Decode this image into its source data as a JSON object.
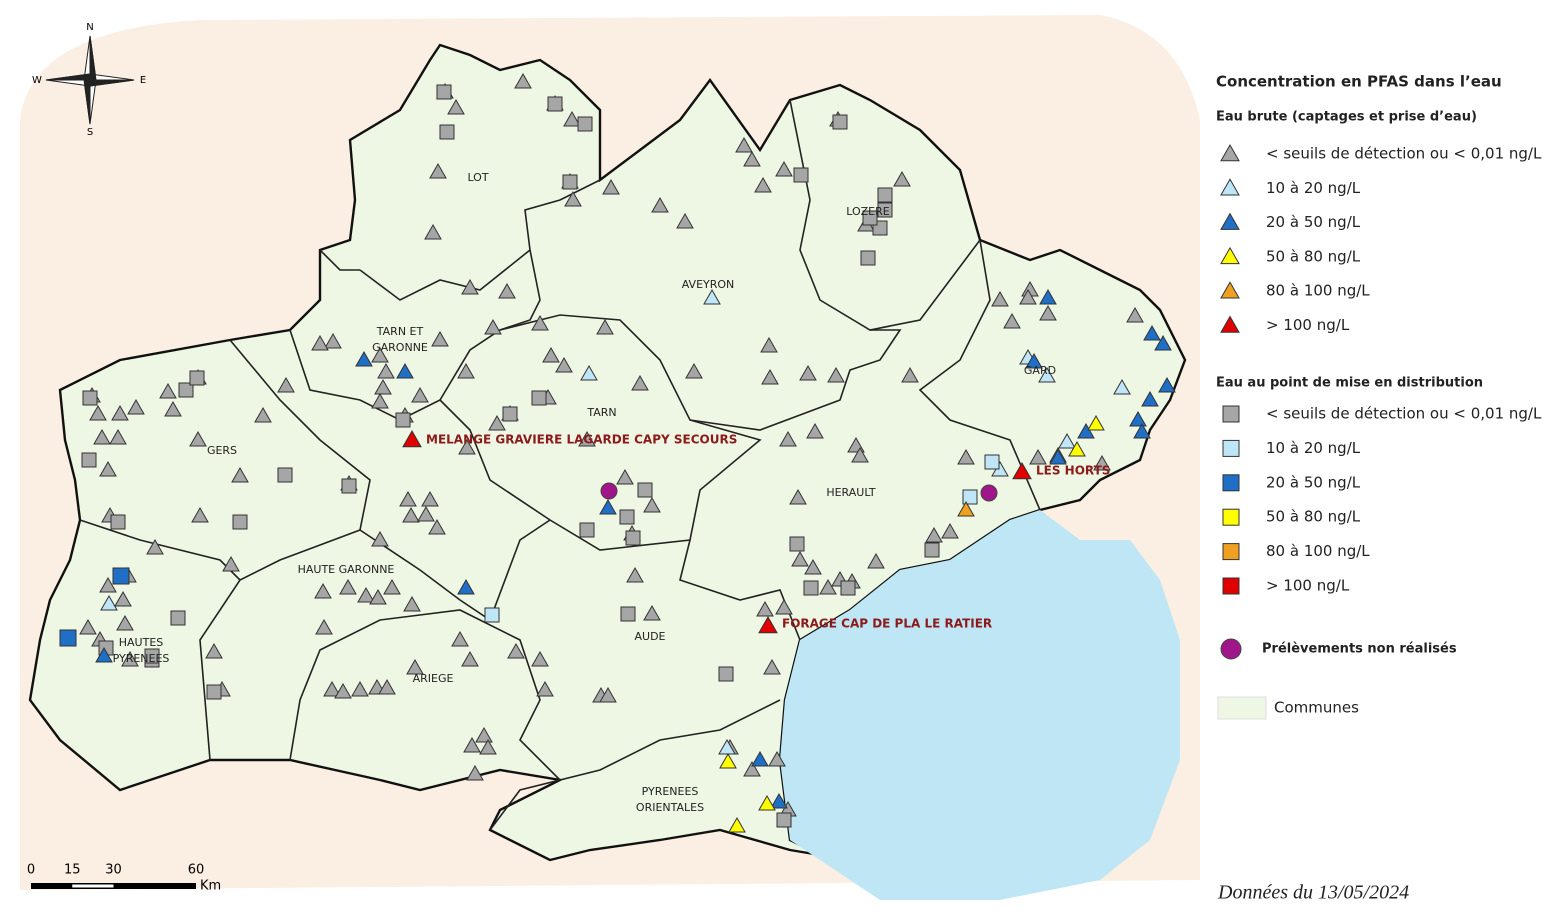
{
  "compass": {
    "n": "N",
    "s": "S",
    "e": "E",
    "w": "W"
  },
  "departments": [
    {
      "lines": [
        "LOT"
      ]
    },
    {
      "lines": [
        "AVEYRON"
      ]
    },
    {
      "lines": [
        "LOZERE"
      ]
    },
    {
      "lines": [
        "TARN ET",
        "GARONNE"
      ]
    },
    {
      "lines": [
        "GERS"
      ]
    },
    {
      "lines": [
        "TARN"
      ]
    },
    {
      "lines": [
        "HERAULT"
      ]
    },
    {
      "lines": [
        "GARD"
      ]
    },
    {
      "lines": [
        "HAUTE GARONNE"
      ]
    },
    {
      "lines": [
        "HAUTES",
        "PYRENEES"
      ]
    },
    {
      "lines": [
        "ARIEGE"
      ]
    },
    {
      "lines": [
        "AUDE"
      ]
    },
    {
      "lines": [
        "PYRENEES",
        "ORIENTALES"
      ]
    }
  ],
  "sites": [
    "MELANGE GRAVIERE LAGARDE CAPY SECOURS",
    "LES HORTS",
    "FORAGE CAP DE PLA LE RATIER"
  ],
  "legend": {
    "title": "Concentration en PFAS dans l’eau",
    "raw_heading": "Eau brute (captages et prise d’eau)",
    "dist_heading": "Eau au point de mise en distribution",
    "classes": [
      {
        "label": "< seuils de détection ou < 0,01 ng/L",
        "color": "#a6a6a6"
      },
      {
        "label": "10 à 20 ng/L",
        "color": "#bfe6f7"
      },
      {
        "label": "20 à 50 ng/L",
        "color": "#1f6fc6"
      },
      {
        "label": "50 à 80 ng/L",
        "color": "#ffff00"
      },
      {
        "label": "80 à 100 ng/L",
        "color": "#f0a020"
      },
      {
        "label": "> 100 ng/L",
        "color": "#e00000"
      }
    ],
    "not_done": "Prélèvements non réalisés",
    "communes": "Communes"
  },
  "scale": {
    "ticks": [
      0,
      15,
      30,
      60
    ],
    "unit": "Km"
  },
  "footer": "Données du 13/05/2024"
}
